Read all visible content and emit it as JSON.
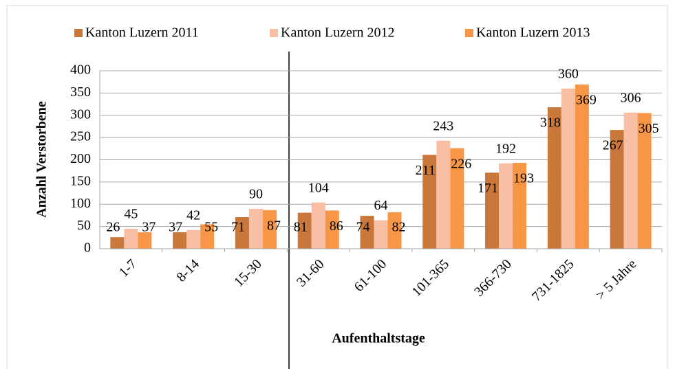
{
  "chart_data": {
    "type": "bar",
    "categories": [
      "1-7",
      "8-14",
      "15-30",
      "31-60",
      "61-100",
      "101-365",
      "366-730",
      "731-1825",
      "> 5 Jahre"
    ],
    "series": [
      {
        "name": "Kanton Luzern 2011",
        "color": "#c9773a",
        "values": [
          26,
          37,
          71,
          81,
          74,
          211,
          171,
          318,
          267
        ]
      },
      {
        "name": "Kanton Luzern 2012",
        "color": "#f8bfa5",
        "values": [
          45,
          42,
          90,
          104,
          64,
          243,
          192,
          360,
          306
        ]
      },
      {
        "name": "Kanton Luzern 2013",
        "color": "#f79646",
        "values": [
          37,
          55,
          87,
          86,
          82,
          226,
          193,
          369,
          305
        ]
      }
    ],
    "xlabel": "Aufenthaltstage",
    "ylabel": "Anzahl Verstorbene",
    "ylim": [
      0,
      400
    ],
    "yticks": [
      0,
      50,
      100,
      150,
      200,
      250,
      300,
      350,
      400
    ],
    "grid": true,
    "legend": "top"
  }
}
